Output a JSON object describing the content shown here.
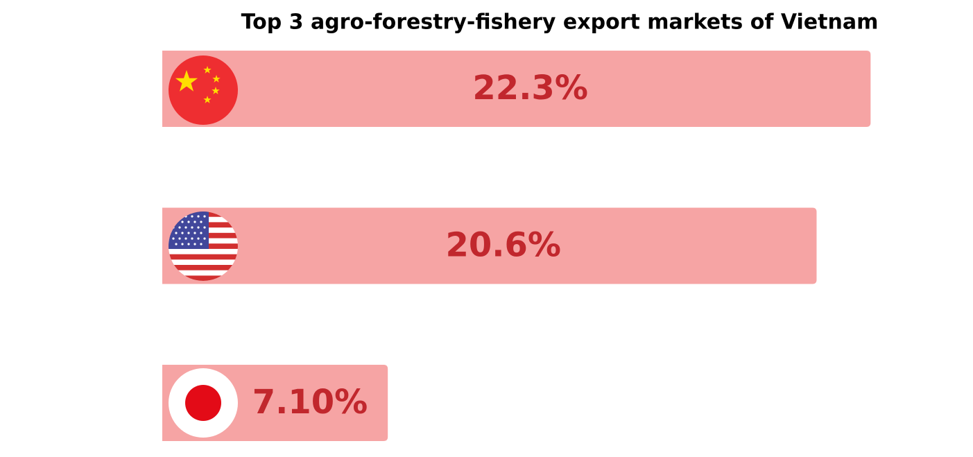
{
  "chart_data": {
    "type": "bar",
    "orientation": "horizontal",
    "title": "Top 3 agro-forestry-fishery export markets of Vietnam",
    "categories": [
      null,
      null,
      null
    ],
    "values": [
      22.3,
      20.6,
      7.1
    ],
    "value_labels": [
      "22.3%",
      "20.6%",
      "7.10%"
    ],
    "color": "#f6a4a4"
  }
}
